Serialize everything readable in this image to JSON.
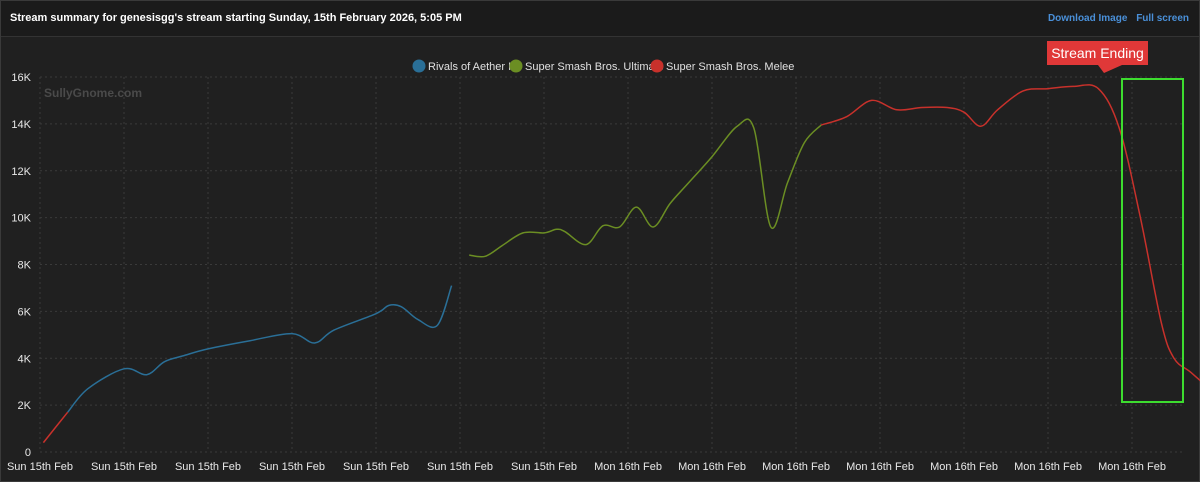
{
  "header": {
    "title": "Stream summary for genesisgg's stream starting Sunday, 15th February 2026, 5:05 PM",
    "download_label": "Download Image",
    "fullscreen_label": "Full screen"
  },
  "watermark": "SullyGnome.com",
  "annotation": {
    "text": "Stream Ending",
    "color": "#e03838",
    "box_color": "#3ddc2f"
  },
  "chart_data": {
    "type": "line",
    "title": "",
    "xlabel": "",
    "ylabel": "",
    "ylim": [
      0,
      16000
    ],
    "yticks": [
      0,
      2000,
      4000,
      6000,
      8000,
      10000,
      12000,
      14000,
      16000
    ],
    "ytick_labels": [
      "0",
      "2K",
      "4K",
      "6K",
      "8K",
      "10K",
      "12K",
      "14K",
      "16K"
    ],
    "xtick_labels": [
      "Sun 15th Feb",
      "Sun 15th Feb",
      "Sun 15th Feb",
      "Sun 15th Feb",
      "Sun 15th Feb",
      "Sun 15th Feb",
      "Sun 15th Feb",
      "Mon 16th Feb",
      "Mon 16th Feb",
      "Mon 16th Feb",
      "Mon 16th Feb",
      "Mon 16th Feb",
      "Mon 16th Feb",
      "Mon 16th Feb"
    ],
    "grid": true,
    "legend_position": "top-center",
    "x_note": "x = index of the 14 evenly spaced date ticks (0 = first tick)",
    "series": [
      {
        "name": "Rivals of Aether II",
        "color": "#2a6f97",
        "x": [
          0.33,
          0.57,
          1.0,
          1.27,
          1.48,
          1.7,
          2.0,
          2.5,
          3.0,
          3.27,
          3.5,
          4.0,
          4.15,
          4.3,
          4.5,
          4.73,
          4.9
        ],
        "y": [
          1700,
          2700,
          3550,
          3300,
          3850,
          4100,
          4400,
          4750,
          5050,
          4650,
          5200,
          5900,
          6250,
          6200,
          5650,
          5400,
          7100
        ]
      },
      {
        "name": "Super Smash Bros. Ultimate",
        "color": "#6b8e23",
        "x": [
          5.11,
          5.3,
          5.5,
          5.75,
          6.0,
          6.15,
          6.25,
          6.5,
          6.7,
          6.9,
          7.1,
          7.3,
          7.5,
          7.7,
          8.0,
          8.3,
          8.5,
          8.7,
          8.9,
          9.1,
          9.3
        ],
        "y": [
          8400,
          8350,
          8800,
          9350,
          9350,
          9500,
          9400,
          8850,
          9650,
          9600,
          10450,
          9600,
          10600,
          11400,
          12600,
          13900,
          13800,
          9600,
          11500,
          13200,
          13950
        ]
      },
      {
        "name": "Super Smash Bros. Melee",
        "color": "#c8312b",
        "x": [
          0.04,
          0.33,
          9.3,
          9.6,
          9.9,
          10.2,
          10.5,
          10.8,
          11.0,
          11.2,
          11.4,
          11.7,
          12.0,
          12.3,
          12.6,
          12.85,
          13.1,
          13.35,
          13.5,
          13.7,
          13.95
        ],
        "y": [
          400,
          1700,
          13950,
          14300,
          15000,
          14600,
          14700,
          14700,
          14500,
          13900,
          14600,
          15400,
          15500,
          15600,
          15500,
          13800,
          10000,
          5500,
          4000,
          3400,
          2600
        ]
      }
    ]
  }
}
